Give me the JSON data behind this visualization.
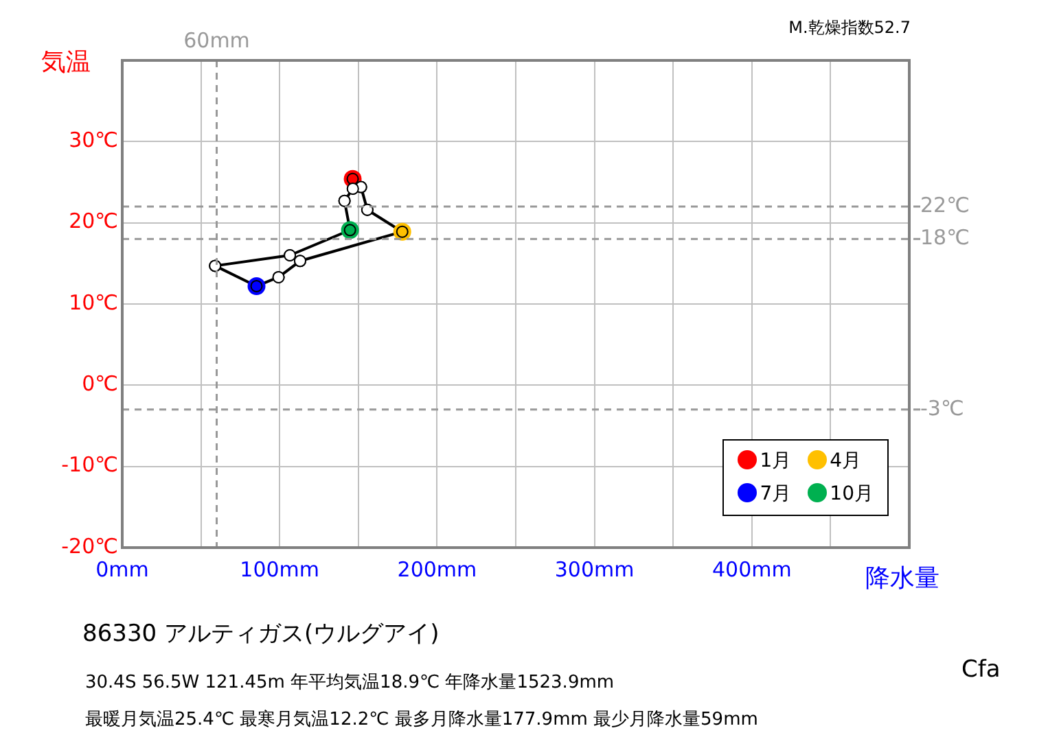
{
  "chart_data": {
    "type": "line",
    "ylabel": "気温",
    "xlabel": "降水量",
    "xlim": [
      0,
      500
    ],
    "ylim": [
      -20,
      40
    ],
    "xticks": [
      {
        "value": 0,
        "label": "0mm"
      },
      {
        "value": 50,
        "label": null
      },
      {
        "value": 100,
        "label": "100mm"
      },
      {
        "value": 150,
        "label": null
      },
      {
        "value": 200,
        "label": "200mm"
      },
      {
        "value": 250,
        "label": null
      },
      {
        "value": 300,
        "label": "300mm"
      },
      {
        "value": 350,
        "label": null
      },
      {
        "value": 400,
        "label": "400mm"
      },
      {
        "value": 450,
        "label": null
      },
      {
        "value": 500,
        "label": null
      }
    ],
    "yticks": [
      {
        "value": -20,
        "label": "-20℃"
      },
      {
        "value": -10,
        "label": "-10℃"
      },
      {
        "value": 0,
        "label": "0℃"
      },
      {
        "value": 10,
        "label": "10℃"
      },
      {
        "value": 20,
        "label": "20℃"
      },
      {
        "value": 30,
        "label": "30℃"
      },
      {
        "value": 40,
        "label": null
      }
    ],
    "grid": true,
    "legend": "bottom right",
    "marker": "circle",
    "line_style": "solid",
    "series": [
      {
        "color": "#000000",
        "colors": [
          "#ff0000",
          "#ffffff",
          "#ffffff",
          "#ffc000",
          "#ffffff",
          "#ffffff",
          "#0000ff",
          "#ffffff",
          "#ffffff",
          "#00b050",
          "#ffffff",
          "#ffffff"
        ],
        "x": [
          146.4,
          151.7,
          155.7,
          177.9,
          113,
          99.3,
          85.3,
          59,
          106.5,
          144.7,
          141.2,
          146.5
        ],
        "values": [
          25.4,
          24.4,
          21.6,
          18.9,
          15.3,
          13.3,
          12.2,
          14.7,
          16.0,
          19.1,
          22.7,
          24.2
        ]
      },
      {
        "type": "scatter",
        "name": "1月",
        "color": "#ff0000",
        "x": [
          146.4
        ],
        "values": [
          25.4
        ]
      },
      {
        "type": "scatter",
        "name": "4月",
        "color": "#ffc000",
        "x": [
          177.9
        ],
        "values": [
          18.9
        ]
      },
      {
        "type": "scatter",
        "name": "7月",
        "color": "#0000ff",
        "x": [
          85.3
        ],
        "values": [
          12.2
        ]
      },
      {
        "type": "scatter",
        "name": "10月",
        "color": "#00b050",
        "x": [
          144.7
        ],
        "values": [
          19.1
        ]
      }
    ],
    "ref_lines": [
      {
        "axis": "y",
        "value": 22,
        "label": "22℃",
        "color": "#999999",
        "line_style": "dashed"
      },
      {
        "axis": "y",
        "value": 18,
        "label": "18℃",
        "color": "#999999",
        "line_style": "dashed"
      },
      {
        "axis": "y",
        "value": -3,
        "label": "-3℃",
        "color": "#999999",
        "line_style": "dashed"
      },
      {
        "axis": "x",
        "value": 60,
        "label": "60mm",
        "color": "#999999",
        "line_style": "dashed"
      }
    ],
    "annotations": [
      "M.乾燥指数52.7",
      "86330  アルティガス(ウルグアイ)",
      "30.4S  56.5W 121.45m  年平均気温18.9℃ 年降水量1523.9mm",
      "最暖月気温25.4℃ 最寒月気温12.2℃ 最多月降水量177.9mm 最少月降水量59mm",
      "Cfa"
    ]
  }
}
